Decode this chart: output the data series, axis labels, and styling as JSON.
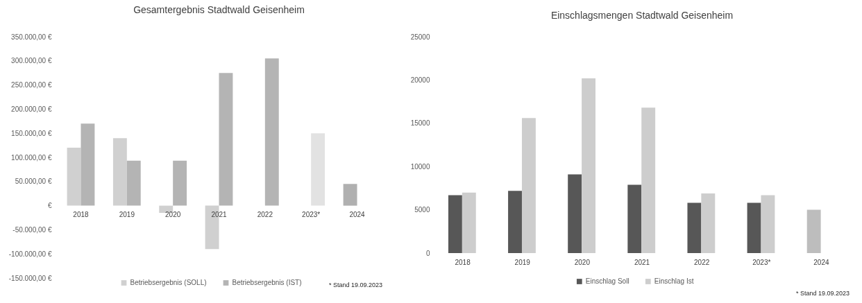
{
  "chart_data": [
    {
      "type": "bar",
      "title": "Gesamtergebnis Stadtwald Geisenheim",
      "categories": [
        "2018",
        "2019",
        "2020",
        "2021",
        "2022",
        "2023*",
        "2024"
      ],
      "series": [
        {
          "name": "Betriebsergebnis (SOLL)",
          "color": "#d0d0d0",
          "colors": [
            "#d0d0d0",
            "#d0d0d0",
            "#d0d0d0",
            "#d0d0d0",
            null,
            null,
            "#b0b0b0"
          ],
          "values": [
            120000,
            140000,
            -15000,
            -90000,
            null,
            null,
            45000
          ]
        },
        {
          "name": "Betriebsergebnis (IST)",
          "color": "#b4b4b4",
          "colors": [
            "#b4b4b4",
            "#b4b4b4",
            "#b4b4b4",
            "#b4b4b4",
            "#b4b4b4",
            "#e2e2e2",
            null
          ],
          "values": [
            170000,
            93000,
            93000,
            275000,
            305000,
            150000,
            null
          ]
        }
      ],
      "ylim": [
        -150000,
        350000
      ],
      "yticks": [
        {
          "value": 350000,
          "label": "350.000,00 €"
        },
        {
          "value": 300000,
          "label": "300.000,00 €"
        },
        {
          "value": 250000,
          "label": "250.000,00 €"
        },
        {
          "value": 200000,
          "label": "200.000,00 €"
        },
        {
          "value": 150000,
          "label": "150.000,00 €"
        },
        {
          "value": 100000,
          "label": "100.000,00 €"
        },
        {
          "value": 50000,
          "label": "50.000,00 €"
        },
        {
          "value": 0,
          "label": "€"
        },
        {
          "value": -50000,
          "label": "-50.000,00 €"
        },
        {
          "value": -100000,
          "label": "-100.000,00 €"
        },
        {
          "value": -150000,
          "label": "-150.000,00 €"
        }
      ],
      "legend": "bottom",
      "annotations": [
        "* Stand 19.09.2023"
      ]
    },
    {
      "type": "bar",
      "title": "Einschlagsmengen Stadtwald Geisenheim",
      "categories": [
        "2018",
        "2019",
        "2020",
        "2021",
        "2022",
        "2023*",
        "2024"
      ],
      "series": [
        {
          "name": "Einschlag Soll",
          "color": "#575757",
          "colors": [
            "#575757",
            "#575757",
            "#575757",
            "#575757",
            "#575757",
            "#575757",
            "#bdbdbd"
          ],
          "values": [
            6700,
            7200,
            9100,
            7900,
            5800,
            5800,
            5000
          ]
        },
        {
          "name": "Einschlag Ist",
          "color": "#cdcdcd",
          "values": [
            7000,
            15600,
            20200,
            16800,
            6900,
            6700,
            null
          ]
        }
      ],
      "ylim": [
        0,
        25000
      ],
      "yticks": [
        0,
        5000,
        10000,
        15000,
        20000,
        25000
      ],
      "legend": "bottom",
      "annotations": [
        "* Stand 19.09.2023"
      ]
    }
  ]
}
